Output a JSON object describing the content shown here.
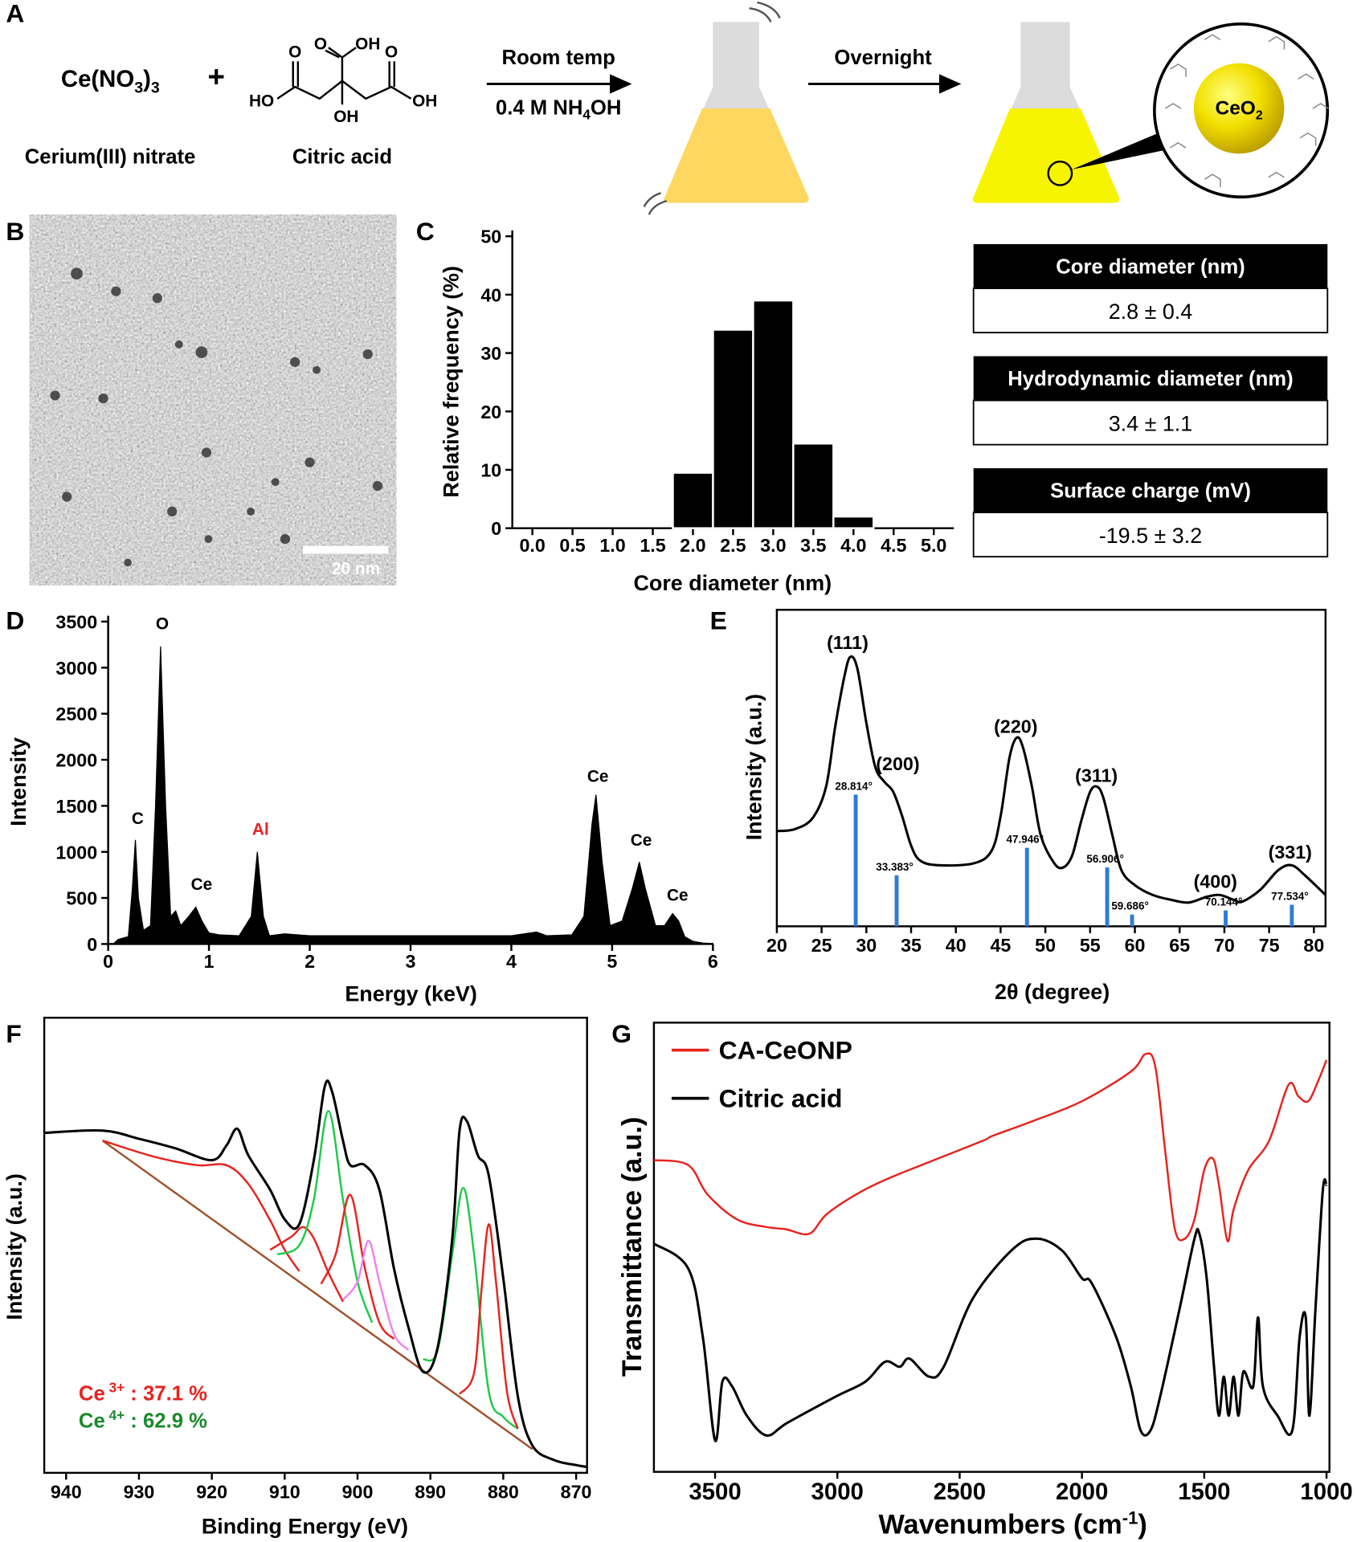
{
  "panel_a": {
    "label": "A",
    "reactant_1": [
      "Ce(NO",
      "3",
      ")",
      "3"
    ],
    "reactant_1_name": "Cerium(III) nitrate",
    "plus": "+",
    "reactant_2_atoms": [
      "O",
      "O",
      "OH",
      "O",
      "HO",
      "OH",
      "OH"
    ],
    "reactant_2_name": "Citric acid",
    "step_1": "Room temp",
    "step_1_condition": [
      "0.4 M NH",
      "4",
      "OH"
    ],
    "step_2": "Overnight",
    "particle": [
      "CeO",
      "2"
    ]
  },
  "panel_b": {
    "label": "B",
    "scale_bar": "20 nm"
  },
  "table": {
    "rows": [
      [
        "Core diameter (nm)",
        "2.8 ± 0.4"
      ],
      [
        "Hydrodynamic  diameter (nm)",
        "3.4 ± 1.1"
      ],
      [
        "Surface charge (mV)",
        "-19.5 ± 3.2"
      ]
    ]
  },
  "chart_data": [
    {
      "type": "histogram",
      "panel": "C",
      "xlabel": "Core diameter (nm)",
      "ylabel": "Relative frequency (%)",
      "bins": [
        1.75,
        2.25,
        2.75,
        3.25,
        3.75,
        4.25
      ],
      "values": [
        9.5,
        34,
        39,
        14.5,
        2
      ],
      "color": "#000000",
      "xlim": [
        -0.25,
        5.25
      ],
      "xticks": [
        {
          "value": 0,
          "label": "0.0"
        },
        {
          "value": 0.5,
          "label": "0.5"
        },
        {
          "value": 1,
          "label": "1.0"
        },
        {
          "value": 1.5,
          "label": "1.5"
        },
        {
          "value": 2,
          "label": "2.0"
        },
        {
          "value": 2.5,
          "label": "2.5"
        },
        {
          "value": 3,
          "label": "3.0"
        },
        {
          "value": 3.5,
          "label": "3.5"
        },
        {
          "value": 4,
          "label": "4.0"
        },
        {
          "value": 4.5,
          "label": "4.5"
        },
        {
          "value": 5,
          "label": "5.0"
        }
      ],
      "ylim": [
        0,
        50
      ],
      "yticks": [
        0,
        10,
        20,
        30,
        40,
        50
      ]
    },
    {
      "type": "area",
      "panel": "D",
      "xlabel": "Energy (keV)",
      "ylabel": "Intensity",
      "color": "#000000",
      "x": [
        0.05,
        0.1,
        0.2,
        0.24,
        0.27,
        0.3,
        0.35,
        0.42,
        0.47,
        0.52,
        0.57,
        0.62,
        0.67,
        0.72,
        0.8,
        0.87,
        0.93,
        1.0,
        1.1,
        1.3,
        1.42,
        1.48,
        1.54,
        1.6,
        1.75,
        2.0,
        2.5,
        3.0,
        3.5,
        4.0,
        4.25,
        4.35,
        4.6,
        4.72,
        4.8,
        4.84,
        4.9,
        4.98,
        5.1,
        5.2,
        5.27,
        5.33,
        5.43,
        5.52,
        5.6,
        5.66,
        5.72,
        5.8,
        5.9,
        6.0
      ],
      "values": [
        0,
        50,
        80,
        600,
        1130,
        500,
        150,
        200,
        1500,
        3230,
        1500,
        300,
        360,
        200,
        300,
        400,
        250,
        120,
        100,
        90,
        300,
        1000,
        300,
        90,
        110,
        90,
        90,
        90,
        90,
        90,
        130,
        90,
        100,
        300,
        1300,
        1620,
        900,
        200,
        250,
        600,
        890,
        600,
        200,
        200,
        330,
        250,
        80,
        30,
        10,
        5
      ],
      "xlim": [
        0,
        6
      ],
      "xticks": [
        0,
        1,
        2,
        3,
        4,
        5,
        6
      ],
      "ylim": [
        0,
        3500
      ],
      "yticks": [
        0,
        500,
        1000,
        1500,
        2000,
        2500,
        3000,
        3500
      ],
      "annotations": [
        {
          "text": "C",
          "color": "#000000"
        },
        {
          "text": "O",
          "color": "#000000"
        },
        {
          "text": "Ce",
          "color": "#000000"
        },
        {
          "text": "Al",
          "color": "#e8221e"
        },
        {
          "text": "Ce",
          "color": "#000000"
        },
        {
          "text": "Ce",
          "color": "#000000"
        },
        {
          "text": "Ce",
          "color": "#000000"
        }
      ]
    },
    {
      "type": "line",
      "panel": "E",
      "xlabel": "2θ (degree)",
      "ylabel": "Intensity (a.u.)",
      "x": [
        20,
        22,
        24,
        25.5,
        26.5,
        27.5,
        28.2,
        29,
        30,
        31,
        32,
        33,
        34,
        35,
        36,
        38,
        42,
        44,
        45,
        46,
        46.8,
        47.5,
        48.5,
        49.5,
        51,
        52,
        53,
        54,
        55,
        55.8,
        56.5,
        57.5,
        58.5,
        60,
        62,
        64,
        66,
        68,
        69.5,
        71,
        72,
        74,
        76,
        77.5,
        79,
        81.3
      ],
      "series": [
        {
          "color": "#000000",
          "values": [
            30.1,
            30.7,
            34.2,
            44.1,
            62.7,
            78.3,
            85.1,
            81.4,
            64.3,
            50.3,
            45.7,
            42.5,
            34.8,
            25.5,
            20.8,
            19.3,
            19.9,
            23.9,
            34.8,
            53.4,
            59.6,
            56.5,
            44.1,
            28.6,
            19.9,
            18.6,
            22.4,
            33.2,
            42.5,
            44.1,
            40.4,
            28.6,
            17.7,
            13.0,
            9.9,
            8.4,
            7.5,
            9.3,
            9.9,
            8.4,
            7.8,
            11.5,
            17.7,
            19.3,
            16.1,
            9.9
          ]
        }
      ],
      "reference": {
        "color": "#2e7bd6",
        "x": [
          28.814,
          33.383,
          47.946,
          56.906,
          59.686,
          70.144,
          77.534
        ],
        "x_labels": [
          "28.814°",
          "33.383°",
          "47.946°",
          "56.906°",
          "59.686°",
          "70.144°",
          "77.534°"
        ],
        "values": [
          41.6,
          16.1,
          24.8,
          18.6,
          3.7,
          5.0,
          6.8
        ]
      },
      "annotations": [
        {
          "text": "(111)"
        },
        {
          "text": "(200)"
        },
        {
          "text": "(220)"
        },
        {
          "text": "(311)"
        },
        {
          "text": "(400)"
        },
        {
          "text": "(331)"
        }
      ],
      "xlim": [
        20,
        81.3
      ],
      "xticks": [
        20,
        25,
        30,
        35,
        40,
        45,
        50,
        55,
        60,
        65,
        70,
        75,
        80
      ],
      "ylim": [
        0,
        100
      ]
    },
    {
      "type": "line",
      "panel": "F",
      "xlabel": "Binding Energy (eV)",
      "ylabel": "Intensity (a.u.)",
      "series": [
        {
          "color": "#a0522d",
          "x": [
            935,
            876
          ],
          "values": [
            73.0,
            5.2
          ]
        },
        {
          "color": "#e8221e",
          "x": [
            935,
            928,
            922,
            918,
            915,
            912,
            910,
            908
          ],
          "values": [
            73.0,
            69.5,
            67.6,
            67.6,
            63.5,
            55.5,
            49.0,
            44.3
          ]
        },
        {
          "color": "#e8221e",
          "x": [
            912,
            909,
            907.5,
            906,
            904,
            902
          ],
          "values": [
            49.0,
            52.0,
            54.0,
            51.5,
            44.0,
            37.6
          ]
        },
        {
          "color": "#1ec94a",
          "x": [
            911,
            908,
            906,
            904,
            902,
            900,
            898
          ],
          "values": [
            48.0,
            50.0,
            60.0,
            79.5,
            60.0,
            42.0,
            33.0
          ]
        },
        {
          "color": "#e8221e",
          "x": [
            905,
            903,
            901,
            899,
            897,
            895
          ],
          "values": [
            41.5,
            48.0,
            61.1,
            45.0,
            33.0,
            29.4
          ]
        },
        {
          "color": "#ee82ee",
          "x": [
            902,
            900,
            898.5,
            897,
            895,
            893
          ],
          "values": [
            38.0,
            42.0,
            51.0,
            42.0,
            30.5,
            27.0
          ]
        },
        {
          "color": "#1ec94a",
          "x": [
            891,
            889,
            887,
            885.5,
            884,
            882,
            880,
            878
          ],
          "values": [
            24.9,
            27.0,
            48.0,
            62.6,
            48.0,
            18.0,
            12.3,
            9.7
          ]
        },
        {
          "color": "#e8221e",
          "x": [
            886,
            884,
            883,
            882,
            881,
            879.5,
            878
          ],
          "values": [
            17.3,
            22.0,
            40.0,
            54.6,
            42.0,
            18.0,
            9.7
          ]
        },
        {
          "color": "#000000",
          "x": [
            943,
            935,
            930,
            925,
            920,
            918,
            916.5,
            915,
            912,
            910,
            908,
            906,
            904.5,
            903.5,
            902,
            901,
            899,
            897,
            895,
            893,
            891,
            889,
            887,
            886,
            885,
            883.5,
            882,
            880,
            878,
            876,
            873,
            870,
            868.5
          ],
          "values": [
            74.7,
            75.2,
            73.4,
            71.3,
            68.7,
            71.9,
            75.6,
            69.8,
            62.2,
            55.7,
            54.6,
            68.7,
            84.9,
            83.8,
            73.0,
            67.6,
            67.6,
            62.2,
            44.9,
            31.9,
            22.2,
            27.6,
            51.4,
            75.2,
            77.3,
            69.8,
            65.4,
            42.8,
            16.8,
            6.0,
            2.8,
            1.7,
            1.3
          ]
        }
      ],
      "annotations": [
        {
          "text": "Ce",
          "sup": "3+",
          "rest": " : 37.1 %",
          "color": "#e8221e"
        },
        {
          "text": "Ce",
          "sup": "4+",
          "rest": " : 62.9 %",
          "color": "#1a8a2a"
        }
      ],
      "xlim": [
        943,
        868.5
      ],
      "xticks": [
        940,
        930,
        920,
        910,
        900,
        890,
        880,
        870
      ],
      "ylim": [
        0,
        100
      ]
    },
    {
      "type": "line",
      "panel": "G",
      "xlabel": [
        "Wavenumbers (cm",
        "-1",
        ")"
      ],
      "ylabel": "Transmittance (a.u.)",
      "legend": "upper left",
      "series": [
        {
          "name": "CA-CeONP",
          "color": "#e8221e",
          "x": [
            3750,
            3610,
            3530,
            3410,
            3290,
            3210,
            3115,
            3045,
            2925,
            2805,
            2605,
            2405,
            2365,
            2200,
            2000,
            1800,
            1740,
            1700,
            1660,
            1620,
            1580,
            1540,
            1500,
            1465,
            1440,
            1405,
            1380,
            1320,
            1235,
            1155,
            1115,
            1075,
            1035,
            1000
          ],
          "values": [
            69.4,
            68.3,
            61.7,
            56.2,
            54.5,
            54.0,
            53.0,
            57.3,
            61.7,
            65.0,
            69.4,
            73.7,
            74.8,
            78.1,
            82.5,
            89.1,
            93.0,
            90.2,
            71.6,
            54.0,
            51.9,
            56.2,
            67.2,
            69.8,
            63.9,
            51.4,
            58.4,
            67.2,
            73.7,
            86.2,
            83.6,
            82.5,
            86.9,
            91.7
          ]
        },
        {
          "name": "Citric acid",
          "color": "#000000",
          "x": [
            3750,
            3610,
            3550,
            3500,
            3470,
            3430,
            3370,
            3290,
            3205,
            3005,
            2885,
            2805,
            2745,
            2705,
            2625,
            2565,
            2445,
            2280,
            2180,
            2080,
            2000,
            1960,
            1860,
            1800,
            1760,
            1720,
            1680,
            1600,
            1540,
            1520,
            1490,
            1460,
            1440,
            1420,
            1400,
            1380,
            1360,
            1340,
            1300,
            1280,
            1260,
            1200,
            1140,
            1110,
            1085,
            1070,
            1045,
            1015,
            1000
          ],
          "values": [
            50.8,
            45.3,
            30.0,
            7.0,
            20.1,
            19.0,
            12.5,
            8.1,
            10.9,
            16.8,
            20.1,
            24.5,
            23.4,
            25.2,
            21.2,
            23.4,
            38.7,
            49.7,
            51.9,
            49.2,
            43.1,
            42.0,
            30.0,
            19.0,
            9.2,
            9.2,
            16.8,
            36.5,
            51.9,
            53.0,
            43.1,
            23.4,
            12.5,
            21.2,
            12.5,
            21.2,
            12.5,
            22.3,
            19.0,
            34.4,
            19.0,
            12.5,
            9.2,
            30.0,
            34.4,
            12.5,
            36.5,
            62.8,
            63.9
          ]
        }
      ],
      "xlim": [
        3750,
        988
      ],
      "xticks": [
        3500,
        3000,
        2500,
        2000,
        1500,
        1000
      ],
      "ylim": [
        0,
        100
      ]
    }
  ]
}
